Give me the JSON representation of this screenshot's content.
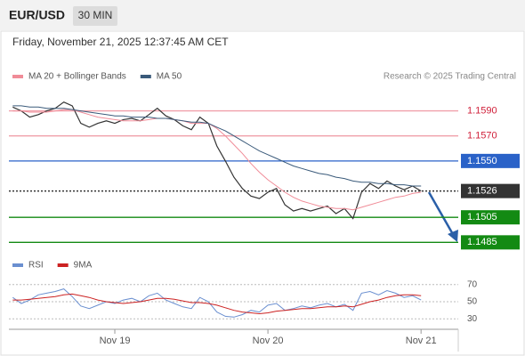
{
  "header": {
    "symbol": "EUR/USD",
    "timeframe": "30 MIN",
    "timestamp": "Friday, November 21, 2025 12:37:45 AM CET",
    "credit": "Research © 2025 Trading Central"
  },
  "chart_data": [
    {
      "type": "line",
      "categories": [
        null,
        null,
        null,
        null,
        null,
        null,
        null,
        null,
        null,
        null,
        null,
        null,
        "Nov 19",
        null,
        null,
        null,
        null,
        null,
        null,
        null,
        null,
        null,
        null,
        null,
        null,
        null,
        null,
        null,
        null,
        null,
        "Nov 20",
        null,
        null,
        null,
        null,
        null,
        null,
        null,
        null,
        null,
        null,
        null,
        null,
        null,
        null,
        null,
        null,
        null,
        "Nov 21"
      ],
      "ylim": [
        1.1476,
        1.1611
      ],
      "series": [
        {
          "color": "#333333",
          "values": [
            1.1593,
            1.159,
            1.1585,
            1.1587,
            1.159,
            1.1592,
            1.1597,
            1.1594,
            1.158,
            1.1577,
            1.158,
            1.1582,
            1.158,
            1.1583,
            1.1584,
            1.1582,
            1.1587,
            1.1592,
            1.1586,
            1.1583,
            1.1578,
            1.1575,
            1.1585,
            1.158,
            1.1562,
            1.155,
            1.1537,
            1.1528,
            1.1522,
            1.152,
            1.1525,
            1.1528,
            1.1515,
            1.151,
            1.1512,
            1.151,
            1.1512,
            1.1514,
            1.1508,
            1.1512,
            1.1504,
            1.1525,
            1.1532,
            1.1528,
            1.1534,
            1.153,
            1.1527,
            1.153,
            1.1526
          ]
        },
        {
          "name": "MA 20 + Bollinger Bands",
          "color": "#f08c98",
          "values": [
            1.159,
            1.159,
            1.1589,
            1.1589,
            1.1589,
            1.159,
            1.1591,
            1.1591,
            1.1589,
            1.1587,
            1.1585,
            1.1584,
            1.1583,
            1.1582,
            1.1582,
            1.1582,
            1.1583,
            1.1584,
            1.1584,
            1.1583,
            1.1582,
            1.158,
            1.158,
            1.158,
            1.1576,
            1.157,
            1.1563,
            1.1556,
            1.1548,
            1.1541,
            1.1535,
            1.153,
            1.1525,
            1.1521,
            1.1518,
            1.1516,
            1.1514,
            1.1513,
            1.1512,
            1.1512,
            1.1511,
            1.1513,
            1.1515,
            1.1517,
            1.1519,
            1.1521,
            1.1522,
            1.1524,
            1.1525
          ]
        },
        {
          "name": "MA 50",
          "color": "#3a5a7a",
          "values": [
            1.1594,
            1.1594,
            1.1593,
            1.1593,
            1.1592,
            1.1592,
            1.1592,
            1.1591,
            1.159,
            1.1589,
            1.1588,
            1.1587,
            1.1586,
            1.1586,
            1.1585,
            1.1585,
            1.1585,
            1.1584,
            1.1584,
            1.1583,
            1.1582,
            1.1581,
            1.1581,
            1.158,
            1.1577,
            1.1574,
            1.157,
            1.1566,
            1.1562,
            1.1558,
            1.1555,
            1.1552,
            1.1549,
            1.1546,
            1.1544,
            1.1542,
            1.154,
            1.1539,
            1.1537,
            1.1536,
            1.1534,
            1.1533,
            1.1533,
            1.1532,
            1.1532,
            1.1531,
            1.1531,
            1.153,
            1.153
          ]
        }
      ],
      "levels": [
        {
          "value": 1.159,
          "label": "1.1590",
          "color": "#d0203a",
          "line_color": "#f0a0aa",
          "boxed": false
        },
        {
          "value": 1.157,
          "label": "1.1570",
          "color": "#d0203a",
          "line_color": "#f0a0aa",
          "boxed": false
        },
        {
          "value": 1.155,
          "label": "1.1550",
          "color": "#2a62c8",
          "line_color": "#2a62c8",
          "boxed": true
        },
        {
          "value": 1.1526,
          "color": "#333333",
          "line_color": "#333333",
          "boxed": true,
          "dotted": true
        },
        {
          "value": 1.1505,
          "color": "#138a13",
          "line_color": "#138a13",
          "boxed": true
        },
        {
          "value": 1.1485,
          "color": "#138a13",
          "line_color": "#138a13",
          "boxed": true
        }
      ]
    },
    {
      "type": "line",
      "ylim": [
        23,
        75
      ],
      "yticks": [
        70,
        50,
        30
      ],
      "series": [
        {
          "name": "RSI",
          "color": "#6a8fd0",
          "values": [
            55,
            48,
            52,
            58,
            60,
            62,
            65,
            56,
            45,
            42,
            46,
            50,
            48,
            52,
            54,
            50,
            57,
            60,
            52,
            48,
            44,
            42,
            55,
            50,
            38,
            33,
            32,
            35,
            40,
            38,
            46,
            48,
            40,
            42,
            45,
            43,
            46,
            48,
            44,
            47,
            40,
            60,
            62,
            58,
            63,
            60,
            55,
            57,
            52
          ]
        },
        {
          "name": "9MA",
          "color": "#cc2222",
          "values": [
            52,
            52,
            53,
            54,
            55,
            56,
            58,
            59,
            57,
            55,
            52,
            50,
            49,
            48,
            49,
            50,
            52,
            54,
            54,
            53,
            51,
            49,
            49,
            48,
            46,
            43,
            40,
            38,
            37,
            36,
            37,
            39,
            40,
            41,
            42,
            42,
            43,
            44,
            44,
            45,
            44,
            47,
            50,
            52,
            55,
            57,
            58,
            58,
            57
          ]
        }
      ]
    }
  ]
}
